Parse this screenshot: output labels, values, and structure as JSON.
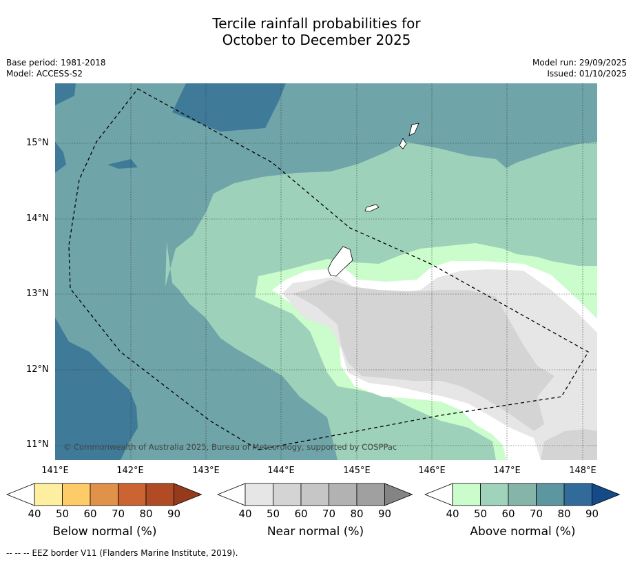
{
  "title": {
    "line1": "Tercile rainfall probabilities for",
    "line2": "October to December 2025"
  },
  "meta": {
    "base_period": "Base period: 1981-2018",
    "model": "Model: ACCESS-S2",
    "model_run": "Model run: 29/09/2025",
    "issued": "Issued: 01/10/2025"
  },
  "map": {
    "x_ticks": [
      "141°E",
      "142°E",
      "143°E",
      "144°E",
      "145°E",
      "146°E",
      "147°E",
      "148°E"
    ],
    "y_ticks": [
      "15°N",
      "14°N",
      "13°N",
      "12°N",
      "11°N"
    ],
    "copyright": "© Commonwealth of Australia 2025, Bureau of Meteorology, supported by COSPPac"
  },
  "colorbars": [
    {
      "label": "Below normal (%)",
      "ticks": [
        "40",
        "50",
        "60",
        "70",
        "80",
        "90"
      ],
      "colors": [
        "#ffffff",
        "#fdeea0",
        "#fdcb68",
        "#e0924a",
        "#cb6332",
        "#b04b25",
        "#963a1e"
      ]
    },
    {
      "label": "Near normal (%)",
      "ticks": [
        "40",
        "50",
        "60",
        "70",
        "80",
        "90"
      ],
      "colors": [
        "#ffffff",
        "#e6e6e6",
        "#d4d4d4",
        "#c6c6c6",
        "#b2b2b2",
        "#a0a0a0",
        "#848484"
      ]
    },
    {
      "label": "Above normal (%)",
      "ticks": [
        "40",
        "50",
        "60",
        "70",
        "80",
        "90"
      ],
      "colors": [
        "#ffffff",
        "#cbfccb",
        "#a0d3bb",
        "#85b4a8",
        "#5c96a0",
        "#326a99",
        "#144b86"
      ]
    }
  ],
  "footer": {
    "legend_symbol": "-- -- --",
    "legend_text": "EEZ border V11 (Flanders Marine Institute, 2019)."
  }
}
